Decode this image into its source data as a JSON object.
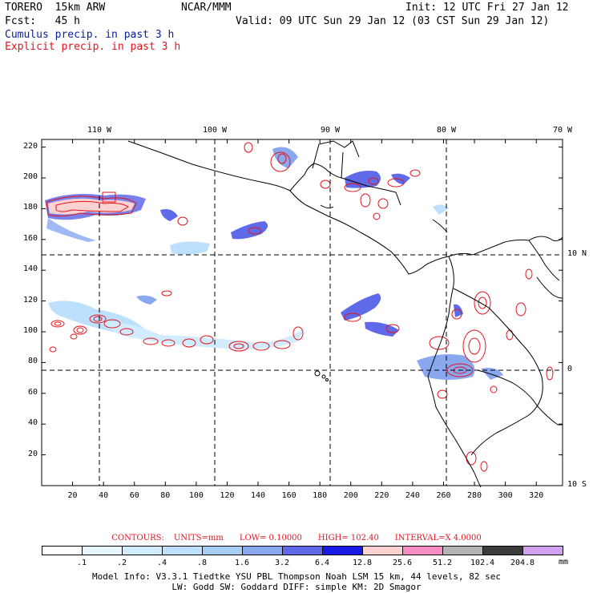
{
  "header": {
    "model": "TORERO  15km ARW",
    "org": "NCAR/MMM",
    "init": "Init: 12 UTC Fri 27 Jan 12",
    "fcst": "Fcst:   45 h",
    "valid": "Valid: 09 UTC Sun 29 Jan 12 (03 CST Sun 29 Jan 12)",
    "field1": "Cumulus precip. in past 3 h",
    "field2": "Explicit precip. in past 3 h"
  },
  "axes": {
    "x_ticks": [
      "20",
      "40",
      "60",
      "80",
      "100",
      "120",
      "140",
      "160",
      "180",
      "200",
      "220",
      "240",
      "260",
      "280",
      "300",
      "320"
    ],
    "y_ticks": [
      "20",
      "40",
      "60",
      "80",
      "100",
      "120",
      "140",
      "160",
      "180",
      "200",
      "220"
    ],
    "lon_labels": [
      "110 W",
      "100 W",
      "90 W",
      "80 W",
      "70 W"
    ],
    "lat_labels": [
      "10 N",
      "0",
      "10 S"
    ]
  },
  "contours": {
    "label": "CONTOURS:",
    "units": "UNITS=mm",
    "low": "LOW= 0.10000",
    "high": "HIGH=  102.40",
    "interval": "INTERVAL=X  4.0000"
  },
  "colorbar": {
    "labels": [
      ".1",
      ".2",
      ".4",
      ".8",
      "1.6",
      "3.2",
      "6.4",
      "12.8",
      "25.6",
      "51.2",
      "102.4",
      "204.8"
    ],
    "unit": "mm",
    "colors": [
      "#ffffff",
      "#e8f6ff",
      "#d2ecff",
      "#bde0ff",
      "#a6cdf4",
      "#8aa8f0",
      "#5f6ae8",
      "#1a1ae6",
      "#ffd2d2",
      "#f58cc3",
      "#b4b4b4",
      "#3c3c3c",
      "#d2a0f0"
    ]
  },
  "model_info": {
    "line1": "Model Info: V3.3.1   Tiedtke YSU PBL  Thompson    Noah LSM  15 km,   44 levels,   82 sec",
    "line2": "LW: Godd SW: Goddard DIFF: simple KM: 2D Smagor"
  }
}
